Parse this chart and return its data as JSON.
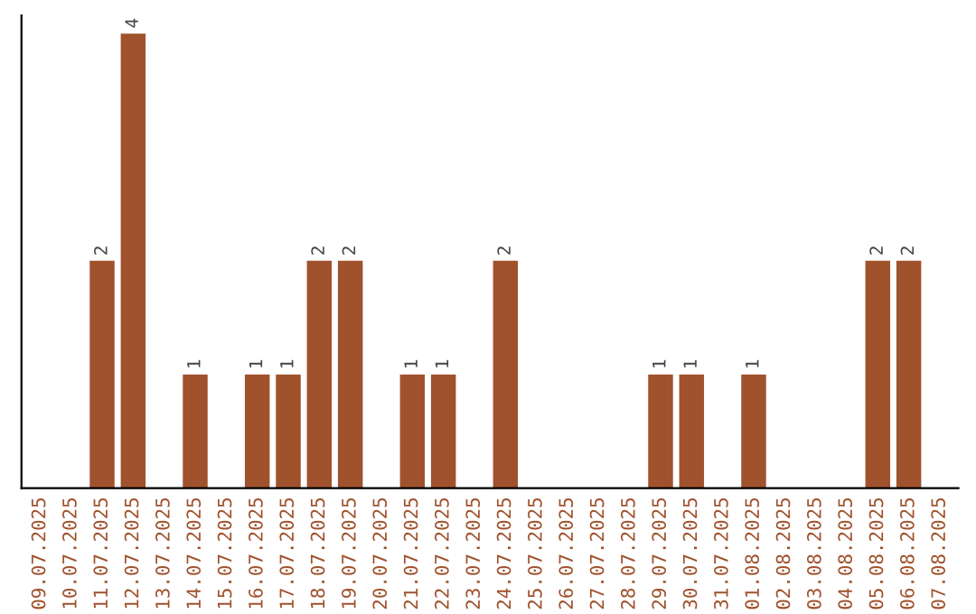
{
  "chart_data": {
    "type": "bar",
    "categories": [
      "09.07.2025",
      "10.07.2025",
      "11.07.2025",
      "12.07.2025",
      "13.07.2025",
      "14.07.2025",
      "15.07.2025",
      "16.07.2025",
      "17.07.2025",
      "18.07.2025",
      "19.07.2025",
      "20.07.2025",
      "21.07.2025",
      "22.07.2025",
      "23.07.2025",
      "24.07.2025",
      "25.07.2025",
      "26.07.2025",
      "27.07.2025",
      "28.07.2025",
      "29.07.2025",
      "30.07.2025",
      "31.07.2025",
      "01.08.2025",
      "02.08.2025",
      "03.08.2025",
      "04.08.2025",
      "05.08.2025",
      "06.08.2025",
      "07.08.2025"
    ],
    "values": [
      0,
      0,
      2,
      4,
      0,
      1,
      0,
      1,
      1,
      2,
      2,
      0,
      1,
      1,
      0,
      2,
      0,
      0,
      0,
      0,
      1,
      1,
      0,
      1,
      0,
      0,
      0,
      2,
      2,
      0
    ],
    "value_labels": [
      null,
      null,
      "2",
      "4",
      null,
      "1",
      null,
      "1",
      "1",
      "2",
      "2",
      null,
      "1",
      "1",
      null,
      "2",
      null,
      null,
      null,
      null,
      "1",
      "1",
      null,
      "1",
      null,
      null,
      null,
      "2",
      "2",
      null
    ],
    "color": "#a0522d",
    "tick_labels": "x",
    "grid": false,
    "legend": false
  }
}
